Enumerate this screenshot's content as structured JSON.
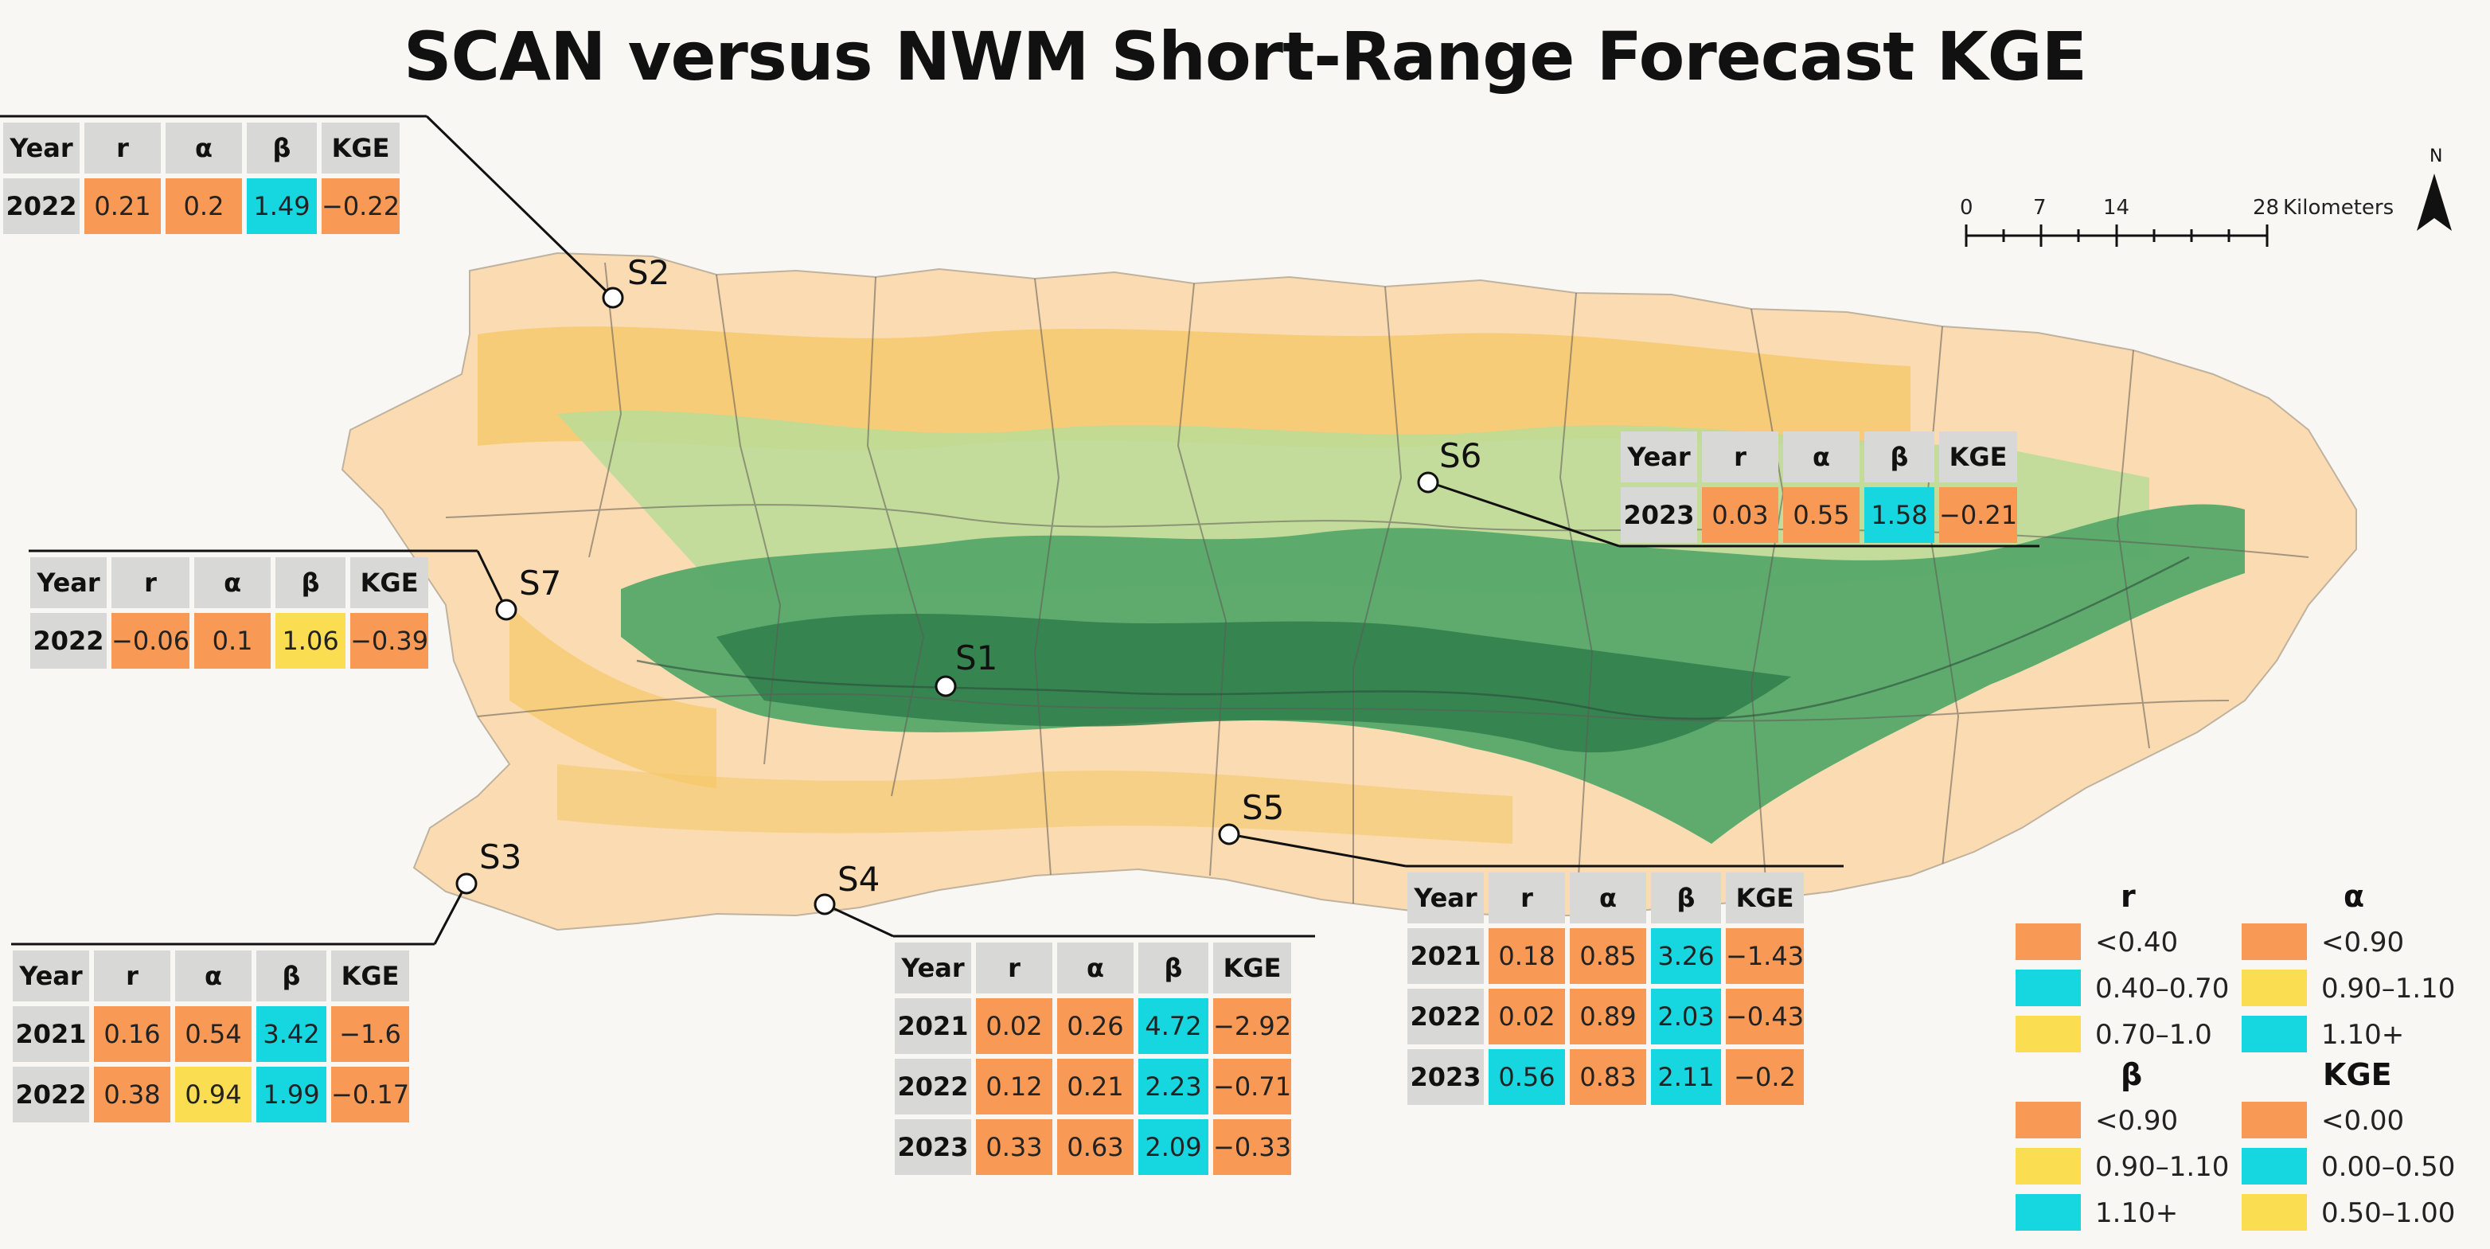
{
  "title": "SCAN versus NWM Short-Range Forecast KGE",
  "north_label": "N",
  "scale_bar": {
    "ticks": [
      "0",
      "7",
      "14",
      "28"
    ],
    "unit": "Kilometers"
  },
  "colors": {
    "low": "#f89a55",
    "mid": "#16d6df",
    "high": "#fbdd52"
  },
  "stations": {
    "S1": {
      "label": "S1"
    },
    "S2": {
      "label": "S2"
    },
    "S3": {
      "label": "S3"
    },
    "S4": {
      "label": "S4"
    },
    "S5": {
      "label": "S5"
    },
    "S6": {
      "label": "S6"
    },
    "S7": {
      "label": "S7"
    }
  },
  "table_headers": [
    "Year",
    "r",
    "α",
    "β",
    "KGE"
  ],
  "tables": {
    "S2": {
      "rows": [
        {
          "year": "2022",
          "r": "0.21",
          "alpha": "0.2",
          "beta": "1.49",
          "kge": "−0.22"
        }
      ]
    },
    "S7": {
      "rows": [
        {
          "year": "2022",
          "r": "−0.06",
          "alpha": "0.1",
          "beta": "1.06",
          "kge": "−0.39"
        }
      ]
    },
    "S6": {
      "rows": [
        {
          "year": "2023",
          "r": "0.03",
          "alpha": "0.55",
          "beta": "1.58",
          "kge": "−0.21"
        }
      ]
    },
    "S3": {
      "rows": [
        {
          "year": "2021",
          "r": "0.16",
          "alpha": "0.54",
          "beta": "3.42",
          "kge": "−1.6"
        },
        {
          "year": "2022",
          "r": "0.38",
          "alpha": "0.94",
          "beta": "1.99",
          "kge": "−0.17"
        }
      ]
    },
    "S4": {
      "rows": [
        {
          "year": "2021",
          "r": "0.02",
          "alpha": "0.26",
          "beta": "4.72",
          "kge": "−2.92"
        },
        {
          "year": "2022",
          "r": "0.12",
          "alpha": "0.21",
          "beta": "2.23",
          "kge": "−0.71"
        },
        {
          "year": "2023",
          "r": "0.33",
          "alpha": "0.63",
          "beta": "2.09",
          "kge": "−0.33"
        }
      ]
    },
    "S5": {
      "rows": [
        {
          "year": "2021",
          "r": "0.18",
          "alpha": "0.85",
          "beta": "3.26",
          "kge": "−1.43"
        },
        {
          "year": "2022",
          "r": "0.02",
          "alpha": "0.89",
          "beta": "2.03",
          "kge": "−0.43"
        },
        {
          "year": "2023",
          "r": "0.56",
          "alpha": "0.83",
          "beta": "2.11",
          "kge": "−0.2"
        }
      ]
    }
  },
  "legend": {
    "r": {
      "title": "r",
      "items": [
        {
          "label": "<0.40",
          "color": "#f89a55"
        },
        {
          "label": "0.40–0.70",
          "color": "#16d6df"
        },
        {
          "label": "0.70–1.0",
          "color": "#fbdd52"
        }
      ]
    },
    "alpha": {
      "title": "α",
      "items": [
        {
          "label": "<0.90",
          "color": "#f89a55"
        },
        {
          "label": "0.90–1.10",
          "color": "#fbdd52"
        },
        {
          "label": "1.10+",
          "color": "#16d6df"
        }
      ]
    },
    "beta": {
      "title": "β",
      "items": [
        {
          "label": "<0.90",
          "color": "#f89a55"
        },
        {
          "label": "0.90–1.10",
          "color": "#fbdd52"
        },
        {
          "label": "1.10+",
          "color": "#16d6df"
        }
      ]
    },
    "kge": {
      "title": "KGE",
      "items": [
        {
          "label": "<0.00",
          "color": "#f89a55"
        },
        {
          "label": "0.00–0.50",
          "color": "#16d6df"
        },
        {
          "label": "0.50–1.00",
          "color": "#fbdd52"
        }
      ]
    }
  }
}
